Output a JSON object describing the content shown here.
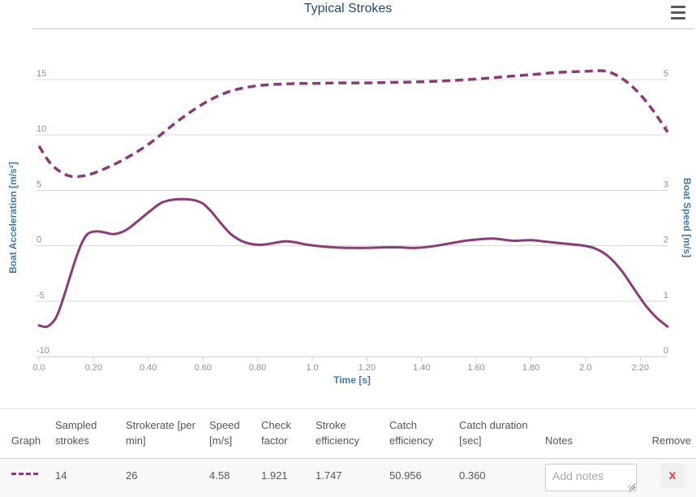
{
  "header": {
    "title": "Typical Strokes",
    "menu_icon": "hamburger-menu"
  },
  "chart": {
    "y_left": {
      "title": "Boat Acceleration [m/s²]",
      "ticks": [
        "15",
        "10",
        "5",
        "0",
        "-5",
        "-10"
      ]
    },
    "y_right": {
      "title": "Boat Speed [m/s]",
      "ticks": [
        "5",
        "4",
        "3",
        "2",
        "1",
        "0"
      ]
    },
    "x": {
      "title": "Time [s]",
      "ticks": [
        "0.0",
        "0.20",
        "0.40",
        "0.60",
        "0.80",
        "1.0",
        "1.20",
        "1.40",
        "1.60",
        "1.80",
        "2.0",
        "2.20"
      ]
    }
  },
  "chart_data": {
    "type": "line",
    "title": "Typical Strokes",
    "xlabel": "Time [s]",
    "ylabel_left": "Boat Acceleration [m/s²]",
    "ylabel_right": "Boat Speed [m/s]",
    "x_range": [
      0,
      2.3
    ],
    "y_left_range": [
      -10,
      15
    ],
    "y_right_range": [
      0,
      5
    ],
    "grid": true,
    "legend": "none",
    "series": [
      {
        "name": "Boat Acceleration [m/s²]",
        "axis": "left",
        "style": "solid",
        "color": "#883c78",
        "points": [
          [
            0.0,
            -7.2
          ],
          [
            0.03,
            -7.3
          ],
          [
            0.06,
            -6.6
          ],
          [
            0.08,
            -5.4
          ],
          [
            0.1,
            -3.9
          ],
          [
            0.12,
            -2.3
          ],
          [
            0.14,
            -0.8
          ],
          [
            0.16,
            0.4
          ],
          [
            0.18,
            1.1
          ],
          [
            0.21,
            1.3
          ],
          [
            0.24,
            1.2
          ],
          [
            0.27,
            1.05
          ],
          [
            0.3,
            1.2
          ],
          [
            0.33,
            1.6
          ],
          [
            0.37,
            2.4
          ],
          [
            0.41,
            3.2
          ],
          [
            0.45,
            3.9
          ],
          [
            0.49,
            4.15
          ],
          [
            0.53,
            4.2
          ],
          [
            0.57,
            4.1
          ],
          [
            0.6,
            3.8
          ],
          [
            0.63,
            3.1
          ],
          [
            0.66,
            2.2
          ],
          [
            0.7,
            1.1
          ],
          [
            0.74,
            0.45
          ],
          [
            0.78,
            0.15
          ],
          [
            0.82,
            0.1
          ],
          [
            0.86,
            0.25
          ],
          [
            0.9,
            0.4
          ],
          [
            0.94,
            0.3
          ],
          [
            0.98,
            0.1
          ],
          [
            1.03,
            -0.05
          ],
          [
            1.08,
            -0.15
          ],
          [
            1.14,
            -0.2
          ],
          [
            1.2,
            -0.2
          ],
          [
            1.26,
            -0.15
          ],
          [
            1.32,
            -0.15
          ],
          [
            1.38,
            -0.2
          ],
          [
            1.44,
            -0.05
          ],
          [
            1.5,
            0.2
          ],
          [
            1.56,
            0.45
          ],
          [
            1.62,
            0.6
          ],
          [
            1.66,
            0.65
          ],
          [
            1.7,
            0.55
          ],
          [
            1.74,
            0.45
          ],
          [
            1.8,
            0.5
          ],
          [
            1.86,
            0.35
          ],
          [
            1.92,
            0.2
          ],
          [
            1.98,
            0.05
          ],
          [
            2.03,
            -0.2
          ],
          [
            2.08,
            -0.9
          ],
          [
            2.13,
            -2.2
          ],
          [
            2.18,
            -4.0
          ],
          [
            2.22,
            -5.4
          ],
          [
            2.26,
            -6.5
          ],
          [
            2.3,
            -7.3
          ]
        ]
      },
      {
        "name": "Boat Speed [m/s]",
        "axis": "right",
        "style": "dashed",
        "color": "#883c78",
        "points": [
          [
            0.0,
            3.8
          ],
          [
            0.04,
            3.5
          ],
          [
            0.08,
            3.33
          ],
          [
            0.12,
            3.25
          ],
          [
            0.16,
            3.26
          ],
          [
            0.2,
            3.31
          ],
          [
            0.25,
            3.41
          ],
          [
            0.3,
            3.53
          ],
          [
            0.35,
            3.67
          ],
          [
            0.4,
            3.83
          ],
          [
            0.45,
            4.02
          ],
          [
            0.5,
            4.22
          ],
          [
            0.55,
            4.4
          ],
          [
            0.6,
            4.56
          ],
          [
            0.65,
            4.69
          ],
          [
            0.7,
            4.79
          ],
          [
            0.75,
            4.85
          ],
          [
            0.8,
            4.89
          ],
          [
            0.85,
            4.91
          ],
          [
            0.9,
            4.92
          ],
          [
            0.95,
            4.93
          ],
          [
            1.0,
            4.93
          ],
          [
            1.1,
            4.94
          ],
          [
            1.2,
            4.94
          ],
          [
            1.3,
            4.95
          ],
          [
            1.4,
            4.96
          ],
          [
            1.5,
            4.98
          ],
          [
            1.6,
            5.01
          ],
          [
            1.7,
            5.05
          ],
          [
            1.8,
            5.09
          ],
          [
            1.9,
            5.13
          ],
          [
            2.0,
            5.15
          ],
          [
            2.06,
            5.16
          ],
          [
            2.1,
            5.11
          ],
          [
            2.15,
            4.96
          ],
          [
            2.2,
            4.73
          ],
          [
            2.25,
            4.42
          ],
          [
            2.3,
            4.05
          ]
        ]
      }
    ]
  },
  "table": {
    "headers": [
      "Graph",
      "Sampled strokes",
      "Strokerate [per min]",
      "Speed [m/s]",
      "Check factor",
      "Stroke efficiency",
      "Catch efficiency",
      "Catch duration [sec]",
      "Notes",
      "Remove"
    ],
    "row": {
      "sampled_strokes": "14",
      "strokerate": "26",
      "speed": "4.58",
      "check_factor": "1.921",
      "stroke_efficiency": "1.747",
      "catch_efficiency": "50.956",
      "catch_duration": "0.360",
      "notes_value": "",
      "notes_placeholder": "Add notes",
      "remove_label": "x"
    }
  },
  "colors": {
    "series_purple": "#883c78",
    "title_navy": "#274a6d",
    "axis_blue": "#4579a8",
    "tick_gray": "#8f8f8f",
    "gridline": "#d9d9d9",
    "x_axis_line": "#c3d7e6",
    "row_bg": "#f8f8f8",
    "remove_red": "#e8404a"
  }
}
